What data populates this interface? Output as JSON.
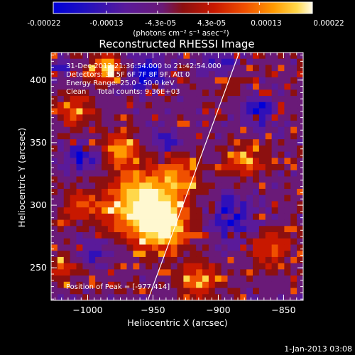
{
  "colorbar": {
    "tick_labels": [
      "-0.00022",
      "-0.00013",
      "-4.3e-05",
      "4.3e-05",
      "0.00013",
      "0.00022"
    ],
    "tick_values": [
      -0.00022,
      -0.00013,
      -4.3e-05,
      4.3e-05,
      0.00013,
      0.00022
    ],
    "range": [
      -0.00022,
      0.00022
    ],
    "unit_label": "(photons cm⁻² s⁻¹ asec⁻²)",
    "colors": [
      "#0000d8",
      "#3010b8",
      "#5a1a9a",
      "#6a1a78",
      "#8c1010",
      "#c81800",
      "#f05000",
      "#ff9a00",
      "#ffd84a",
      "#fff8d0"
    ]
  },
  "chart_data": {
    "type": "heatmap",
    "title": "Reconstructed RHESSI Image",
    "xlabel": "Heliocentric X (arcsec)",
    "ylabel": "Heliocentric Y (arcsec)",
    "xlim": [
      -1028,
      -835
    ],
    "ylim": [
      224,
      422
    ],
    "x_ticks": [
      -1000,
      -950,
      -900,
      -850
    ],
    "x_tick_labels": [
      "−1000",
      "−950",
      "−900",
      "−850"
    ],
    "y_ticks": [
      250,
      300,
      350,
      400
    ],
    "y_tick_labels": [
      "250",
      "300",
      "350",
      "400"
    ],
    "peak": [
      -977,
      414
    ],
    "limb_line": [
      [
        -954,
        224
      ],
      [
        -884,
        422
      ]
    ],
    "hot_regions": [
      {
        "x": -958,
        "y": 300,
        "strength": 1.0,
        "spread": 18
      },
      {
        "x": -940,
        "y": 282,
        "strength": 0.7,
        "spread": 12
      },
      {
        "x": -975,
        "y": 345,
        "strength": 0.65,
        "spread": 9
      },
      {
        "x": -930,
        "y": 322,
        "strength": 0.5,
        "spread": 11
      },
      {
        "x": -985,
        "y": 410,
        "strength": 0.7,
        "spread": 8
      },
      {
        "x": -1010,
        "y": 375,
        "strength": 0.4,
        "spread": 9
      },
      {
        "x": -880,
        "y": 335,
        "strength": 0.45,
        "spread": 10
      },
      {
        "x": -860,
        "y": 265,
        "strength": 0.45,
        "spread": 10
      },
      {
        "x": -1005,
        "y": 300,
        "strength": 0.45,
        "spread": 9
      },
      {
        "x": -915,
        "y": 240,
        "strength": 0.5,
        "spread": 10
      },
      {
        "x": -890,
        "y": 395,
        "strength": 0.25,
        "spread": 8
      },
      {
        "x": -1018,
        "y": 250,
        "strength": 0.35,
        "spread": 8
      }
    ],
    "cool_regions": [
      {
        "x": -955,
        "y": 405,
        "strength": 0.9,
        "spread": 10
      },
      {
        "x": -890,
        "y": 290,
        "strength": 0.8,
        "spread": 12
      },
      {
        "x": -1005,
        "y": 340,
        "strength": 0.7,
        "spread": 9
      },
      {
        "x": -995,
        "y": 265,
        "strength": 0.6,
        "spread": 8
      },
      {
        "x": -870,
        "y": 375,
        "strength": 0.7,
        "spread": 10
      },
      {
        "x": -900,
        "y": 415,
        "strength": 0.6,
        "spread": 9
      },
      {
        "x": -940,
        "y": 350,
        "strength": 0.6,
        "spread": 8
      },
      {
        "x": -1020,
        "y": 410,
        "strength": 0.4,
        "spread": 7
      }
    ]
  },
  "overlay": {
    "time_line": "31-Dec-2012 21:36:54.000 to 21:42:54.000",
    "detectors_line": "Detectors: 3F 5F 6F 7F 8F 9F, Att 0",
    "energy_line": "Energy Range: 25.0 - 50.0 keV",
    "clean_line": "Clean     Total counts: 9.36E+03",
    "peak_line": "Position of Peak = [-977,414]"
  },
  "footer": {
    "timestamp": "1-Jan-2013 03:08"
  }
}
